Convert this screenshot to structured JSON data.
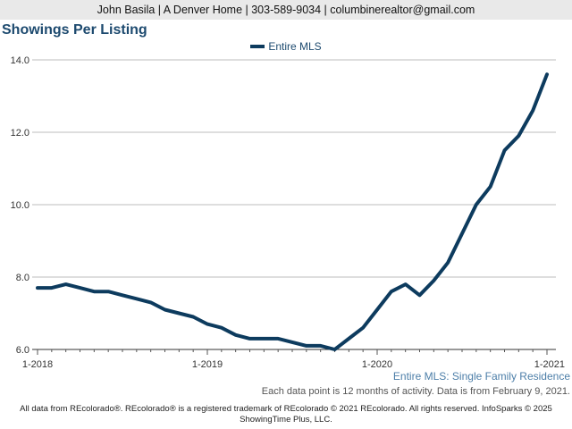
{
  "header": {
    "contact": "John Basila | A Denver Home | 303-589-9034 | columbinerealtor@gmail.com"
  },
  "chart_title": "Showings Per Listing",
  "legend": {
    "label": "Entire MLS",
    "color": "#0d3b5e"
  },
  "subtitle": "Entire MLS: Single Family Residence",
  "note": "Each data point is 12 months of activity. Data is from February 9, 2021.",
  "footer": {
    "line1": "All data from REcolorado®. REcolorado® is a registered trademark of REcolorado © 2021 REcolorado. All rights reserved. InfoSparks © 2025",
    "line2": "ShowingTime Plus, LLC."
  },
  "chart_data": {
    "type": "line",
    "title": "Showings Per Listing",
    "xlabel": "",
    "ylabel": "",
    "ylim": [
      6.0,
      14.0
    ],
    "yticks": [
      "6.0",
      "8.0",
      "10.0",
      "12.0",
      "14.0"
    ],
    "xticks": [
      "1-2018",
      "1-2019",
      "1-2020",
      "1-2021"
    ],
    "x": [
      "1-2018",
      "2-2018",
      "3-2018",
      "4-2018",
      "5-2018",
      "6-2018",
      "7-2018",
      "8-2018",
      "9-2018",
      "10-2018",
      "11-2018",
      "12-2018",
      "1-2019",
      "2-2019",
      "3-2019",
      "4-2019",
      "5-2019",
      "6-2019",
      "7-2019",
      "8-2019",
      "9-2019",
      "10-2019",
      "11-2019",
      "12-2019",
      "1-2020",
      "2-2020",
      "3-2020",
      "4-2020",
      "5-2020",
      "6-2020",
      "7-2020",
      "8-2020",
      "9-2020",
      "10-2020",
      "11-2020",
      "12-2020",
      "1-2021"
    ],
    "series": [
      {
        "name": "Entire MLS",
        "color": "#0d3b5e",
        "values": [
          7.7,
          7.7,
          7.8,
          7.7,
          7.6,
          7.6,
          7.5,
          7.4,
          7.3,
          7.1,
          7.0,
          6.9,
          6.7,
          6.6,
          6.4,
          6.3,
          6.3,
          6.3,
          6.2,
          6.1,
          6.1,
          6.0,
          6.3,
          6.6,
          7.1,
          7.6,
          7.8,
          7.5,
          7.9,
          8.4,
          9.2,
          10.0,
          10.5,
          11.5,
          11.9,
          12.6,
          13.6
        ]
      }
    ],
    "grid": true,
    "legend_position": "top-center"
  }
}
